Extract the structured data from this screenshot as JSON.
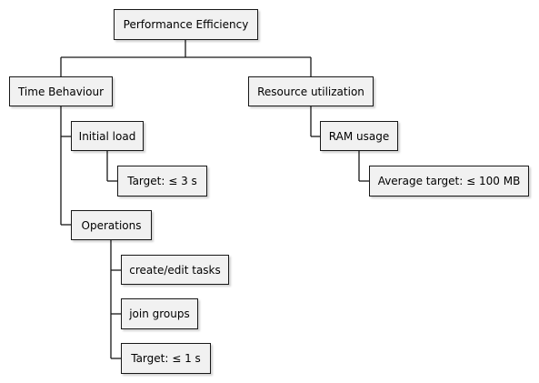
{
  "colors": {
    "node_fill": "#f1f1f1",
    "node_border": "#181818",
    "text": "#000000",
    "background": "#ffffff"
  },
  "tree": {
    "root": "Performance Efficiency",
    "time_behaviour": {
      "label": "Time Behaviour",
      "initial_load": {
        "label": "Initial load",
        "target": "Target: ≤ 3 s"
      },
      "operations": {
        "label": "Operations",
        "create_edit": "create/edit tasks",
        "join_groups": "join groups",
        "target": "Target: ≤ 1 s"
      }
    },
    "resource_utilization": {
      "label": "Resource utilization",
      "ram_usage": {
        "label": "RAM usage",
        "target": "Average target: ≤ 100 MB"
      }
    }
  }
}
